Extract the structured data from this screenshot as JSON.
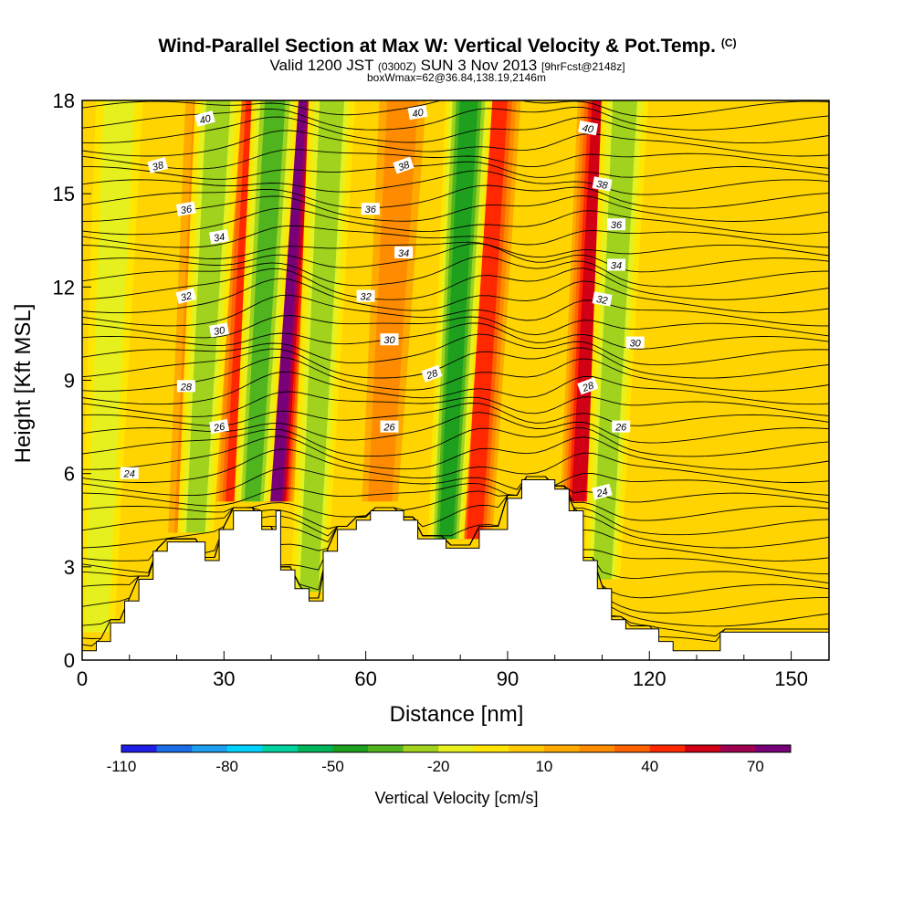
{
  "chart_data": {
    "type": "heatmap",
    "title": "Wind-Parallel Section at Max W: Vertical Velocity & Pot.Temp.",
    "title_mark": "(C)",
    "subtitle": {
      "part1": "Valid 1200 JST",
      "part2": "(0300Z)",
      "part3": "SUN 3 Nov 2013",
      "part4": "[9hrFcst@2148z]"
    },
    "subtitle2": "boxWmax=62@36.84,138.19,2146m",
    "xlabel": "Distance [nm]",
    "ylabel": "Height [Kft MSL]",
    "xlim": [
      0,
      158
    ],
    "ylim": [
      0,
      18
    ],
    "x_ticks": [
      0,
      30,
      60,
      90,
      120,
      150
    ],
    "y_ticks": [
      0,
      3,
      6,
      9,
      12,
      15,
      18
    ],
    "x_minor_step": 10,
    "grid": false,
    "colorbar": {
      "label": "Vertical Velocity [cm/s]",
      "bounds": [
        -110,
        -100,
        -90,
        -80,
        -70,
        -60,
        -50,
        -40,
        -30,
        -20,
        -10,
        0,
        10,
        20,
        30,
        40,
        50,
        60,
        70,
        80
      ],
      "colors": [
        "#1e1ee6",
        "#1a6ee6",
        "#1e9eef",
        "#00d2ff",
        "#00d2a0",
        "#00b45a",
        "#1ea01e",
        "#50b41e",
        "#a0d21e",
        "#e6f01e",
        "#ffe600",
        "#ffc800",
        "#ffaa00",
        "#ff8c00",
        "#ff6400",
        "#ff2800",
        "#d20014",
        "#a00050",
        "#780078"
      ],
      "tick_labels": [
        "-110",
        "-80",
        "-50",
        "-20",
        "10",
        "40",
        "70"
      ]
    },
    "updrafts": [
      {
        "x": 41,
        "w": 70
      },
      {
        "x": 83,
        "w": 45
      },
      {
        "x": 105,
        "w": 55
      },
      {
        "x": 32,
        "w": 40
      },
      {
        "x": 22,
        "w": 25
      },
      {
        "x": 63,
        "w": 20
      }
    ],
    "downdrafts": [
      {
        "x": 36,
        "w": -45
      },
      {
        "x": 77,
        "w": -55
      },
      {
        "x": 48,
        "w": -30
      },
      {
        "x": 3,
        "w": -25
      },
      {
        "x": 110,
        "w": -35
      },
      {
        "x": 24,
        "w": -30
      }
    ],
    "terrain": [
      [
        0,
        0.3
      ],
      [
        3,
        0.3
      ],
      [
        3,
        0.6
      ],
      [
        6,
        0.6
      ],
      [
        6,
        1.2
      ],
      [
        9,
        1.2
      ],
      [
        9,
        1.9
      ],
      [
        12,
        1.9
      ],
      [
        12,
        2.6
      ],
      [
        15,
        2.6
      ],
      [
        15,
        3.5
      ],
      [
        18,
        3.5
      ],
      [
        18,
        3.8
      ],
      [
        26,
        3.8
      ],
      [
        26,
        3.2
      ],
      [
        29,
        3.2
      ],
      [
        29,
        4.2
      ],
      [
        32,
        4.2
      ],
      [
        32,
        4.8
      ],
      [
        38,
        4.8
      ],
      [
        38,
        4.2
      ],
      [
        41,
        4.2
      ],
      [
        41,
        4.8
      ],
      [
        42,
        4.8
      ],
      [
        42,
        2.9
      ],
      [
        45,
        2.9
      ],
      [
        45,
        2.3
      ],
      [
        48,
        2.3
      ],
      [
        48,
        1.9
      ],
      [
        51,
        1.9
      ],
      [
        51,
        3.5
      ],
      [
        54,
        3.5
      ],
      [
        54,
        4.2
      ],
      [
        58,
        4.2
      ],
      [
        58,
        4.5
      ],
      [
        61,
        4.5
      ],
      [
        61,
        4.8
      ],
      [
        68,
        4.8
      ],
      [
        68,
        4.5
      ],
      [
        71,
        4.5
      ],
      [
        71,
        3.9
      ],
      [
        74,
        3.9
      ],
      [
        74,
        3.9
      ],
      [
        77,
        3.9
      ],
      [
        77,
        3.6
      ],
      [
        84,
        3.6
      ],
      [
        84,
        4.2
      ],
      [
        90,
        4.2
      ],
      [
        90,
        5.2
      ],
      [
        93,
        5.2
      ],
      [
        93,
        5.8
      ],
      [
        100,
        5.8
      ],
      [
        100,
        5.5
      ],
      [
        103,
        5.5
      ],
      [
        103,
        4.8
      ],
      [
        106,
        4.8
      ],
      [
        106,
        3.2
      ],
      [
        109,
        3.2
      ],
      [
        109,
        2.3
      ],
      [
        112,
        2.3
      ],
      [
        112,
        1.3
      ],
      [
        115,
        1.3
      ],
      [
        115,
        1.0
      ],
      [
        122,
        1.0
      ],
      [
        122,
        0.6
      ],
      [
        125,
        0.6
      ],
      [
        125,
        0.3
      ],
      [
        135,
        0.3
      ],
      [
        135,
        0.9
      ],
      [
        158,
        0.9
      ]
    ],
    "theta_labels": [
      {
        "text": "40",
        "x": 26,
        "y": 17.4,
        "rot": -15
      },
      {
        "text": "38",
        "x": 16,
        "y": 15.9,
        "rot": -15
      },
      {
        "text": "36",
        "x": 22,
        "y": 14.5,
        "rot": -10
      },
      {
        "text": "34",
        "x": 29,
        "y": 13.6,
        "rot": -10
      },
      {
        "text": "32",
        "x": 22,
        "y": 11.7,
        "rot": -15
      },
      {
        "text": "30",
        "x": 29,
        "y": 10.6,
        "rot": -10
      },
      {
        "text": "28",
        "x": 22,
        "y": 8.8,
        "rot": 0
      },
      {
        "text": "26",
        "x": 29,
        "y": 7.5,
        "rot": -10
      },
      {
        "text": "24",
        "x": 10,
        "y": 6.0,
        "rot": 0
      },
      {
        "text": "40",
        "x": 71,
        "y": 17.6,
        "rot": -10
      },
      {
        "text": "38",
        "x": 68,
        "y": 15.9,
        "rot": -20
      },
      {
        "text": "36",
        "x": 61,
        "y": 14.5,
        "rot": 0
      },
      {
        "text": "34",
        "x": 68,
        "y": 13.1,
        "rot": 0
      },
      {
        "text": "32",
        "x": 60,
        "y": 11.7,
        "rot": 0
      },
      {
        "text": "30",
        "x": 65,
        "y": 10.3,
        "rot": 0
      },
      {
        "text": "28",
        "x": 74,
        "y": 9.2,
        "rot": -20
      },
      {
        "text": "26",
        "x": 65,
        "y": 7.5,
        "rot": 0
      },
      {
        "text": "40",
        "x": 107,
        "y": 17.1,
        "rot": 10
      },
      {
        "text": "38",
        "x": 110,
        "y": 15.3,
        "rot": 10
      },
      {
        "text": "36",
        "x": 113,
        "y": 14.0,
        "rot": 0
      },
      {
        "text": "34",
        "x": 113,
        "y": 12.7,
        "rot": 0
      },
      {
        "text": "32",
        "x": 110,
        "y": 11.6,
        "rot": 10
      },
      {
        "text": "30",
        "x": 117,
        "y": 10.2,
        "rot": 0
      },
      {
        "text": "28",
        "x": 107,
        "y": 8.8,
        "rot": -20
      },
      {
        "text": "26",
        "x": 114,
        "y": 7.5,
        "rot": 0
      },
      {
        "text": "24",
        "x": 110,
        "y": 5.4,
        "rot": -15
      }
    ]
  }
}
